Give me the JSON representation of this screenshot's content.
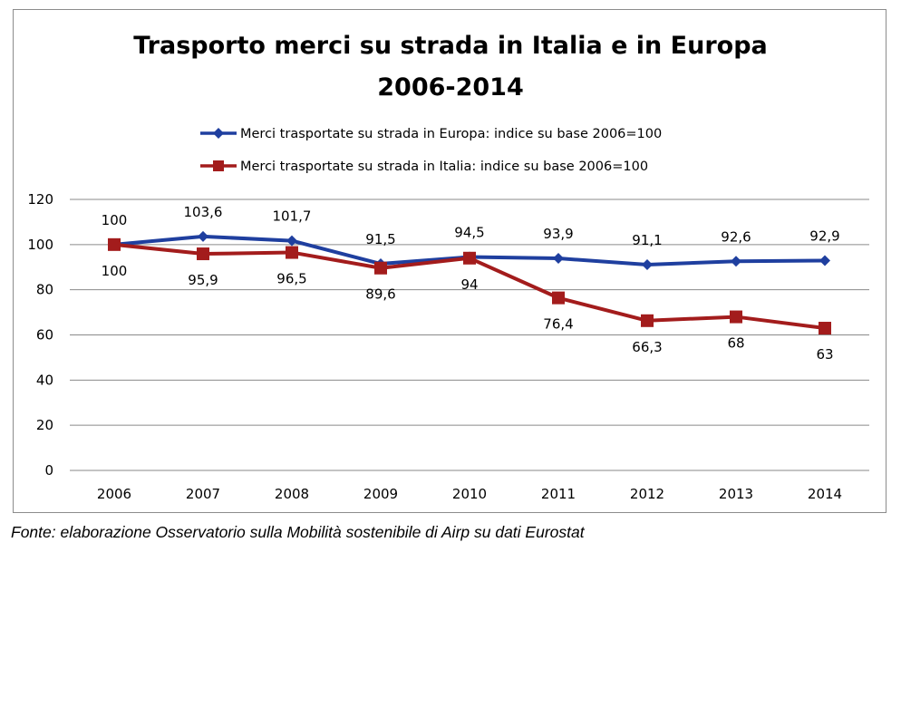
{
  "chart_data": {
    "type": "line",
    "title_lines": [
      "Trasporto merci su strada in Italia e in Europa",
      "2006-2014"
    ],
    "categories": [
      "2006",
      "2007",
      "2008",
      "2009",
      "2010",
      "2011",
      "2012",
      "2013",
      "2014"
    ],
    "ylim": [
      0,
      120
    ],
    "yticks": [
      0,
      20,
      40,
      60,
      80,
      100,
      120
    ],
    "grid": true,
    "legend_position": "top",
    "series": [
      {
        "name": "Merci trasportate su strada in Europa: indice su base 2006=100",
        "color": "#1f3f9f",
        "marker": "diamond",
        "values": [
          100,
          103.6,
          101.7,
          91.5,
          94.5,
          93.9,
          91.1,
          92.6,
          92.9
        ],
        "labels": [
          "100",
          "103,6",
          "101,7",
          "91,5",
          "94,5",
          "93,9",
          "91,1",
          "92,6",
          "92,9"
        ],
        "label_position": "above"
      },
      {
        "name": "Merci trasportate su strada in Italia: indice su base 2006=100",
        "color": "#a31c1c",
        "marker": "square",
        "values": [
          100,
          95.9,
          96.5,
          89.6,
          94,
          76.4,
          66.3,
          68,
          63
        ],
        "labels": [
          "100",
          "95,9",
          "96,5",
          "89,6",
          "94",
          "76,4",
          "66,3",
          "68",
          "63"
        ],
        "label_position": "below"
      }
    ]
  },
  "source_note": "Fonte: elaborazione Osservatorio sulla Mobilità sostenibile di Airp su dati Eurostat"
}
